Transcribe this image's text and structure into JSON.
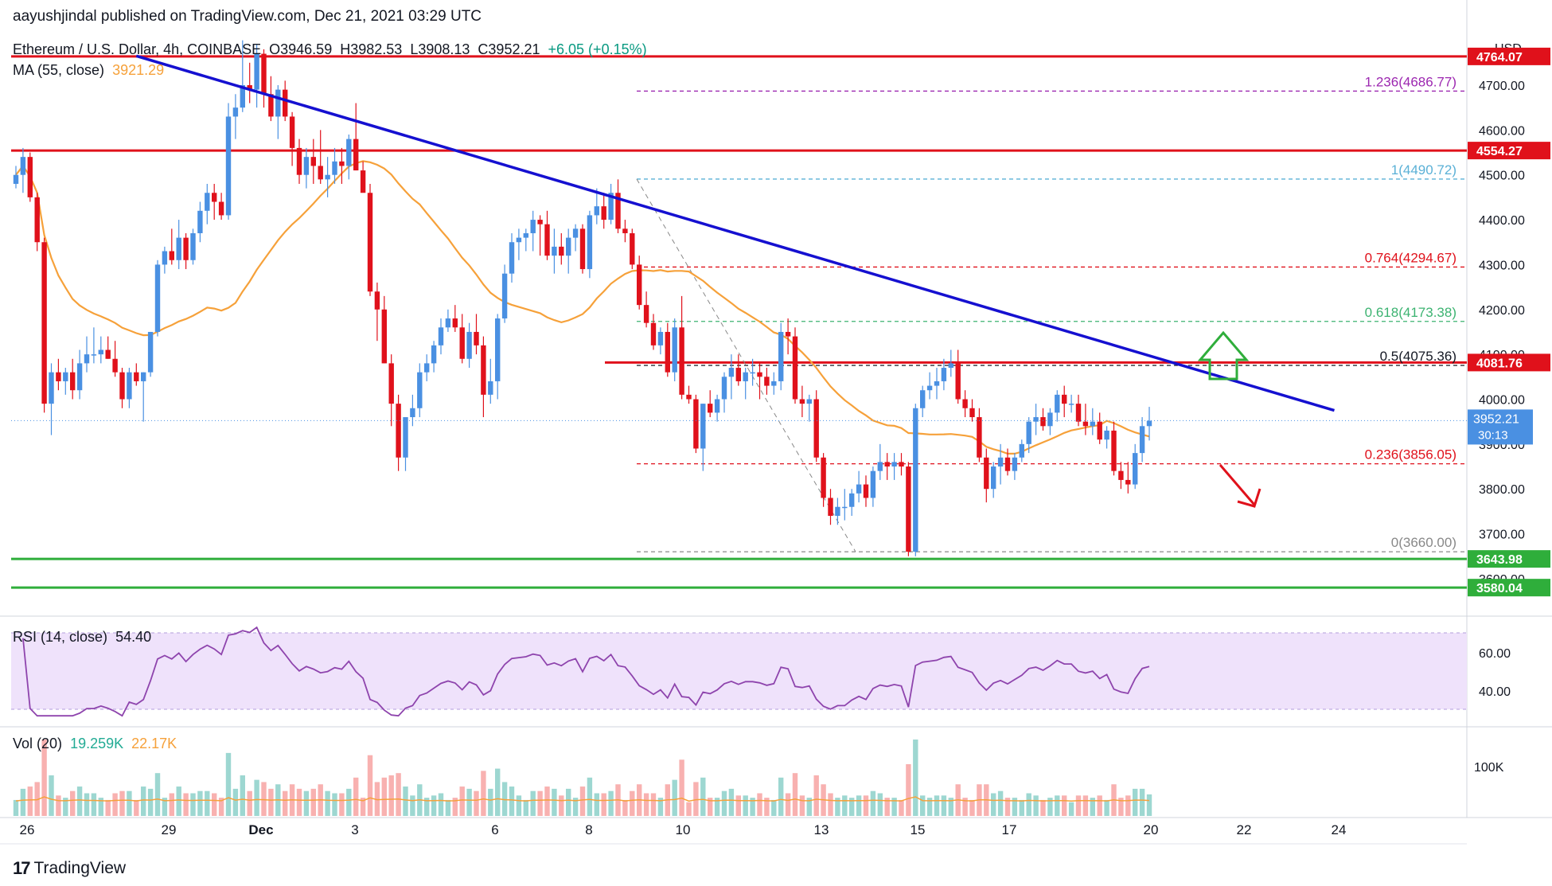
{
  "publisher_line": "aayushjindal published on TradingView.com, Dec 21, 2021 03:29 UTC",
  "symbol": {
    "name": "Ethereum / U.S. Dollar, 4h, COINBASE",
    "open": "O3946.59",
    "high": "H3982.53",
    "low": "L3908.13",
    "close": "C3952.21",
    "change": "+6.05 (+0.15%)"
  },
  "ma": {
    "label": "MA (55, close)",
    "value": "3921.29"
  },
  "rsi": {
    "label": "RSI (14, close)",
    "value": "54.40"
  },
  "vol": {
    "label": "Vol (20)",
    "value1": "19.259K",
    "value2": "22.17K"
  },
  "brand": "TradingView",
  "colors": {
    "up": "#4a90e2",
    "down": "#e0111b",
    "trend": "#1510d0",
    "ma": "#f6a13a",
    "support": "#2fae3b",
    "resistance": "#e0111b",
    "rsi": "#8e44ad",
    "rsi_band": "#efe2fb"
  },
  "chart_data": {
    "type": "candlestick",
    "currency": "USD",
    "y_ticks": [
      3600,
      3700,
      3800,
      3900,
      4000,
      4100,
      4200,
      4300,
      4400,
      4500,
      4600,
      4700
    ],
    "x_ticks": [
      "26",
      "29",
      "Dec",
      "3",
      "6",
      "8",
      "10",
      "13",
      "15",
      "17",
      "20",
      "22",
      "24"
    ],
    "horizontal_levels": [
      {
        "value": 4764.07,
        "label": "4764.07",
        "color": "#e0111b"
      },
      {
        "value": 4554.27,
        "label": "4554.27",
        "color": "#e0111b"
      },
      {
        "value": 4081.76,
        "label": "4081.76",
        "color": "#e0111b"
      },
      {
        "value": 3643.98,
        "label": "3643.98",
        "color": "#2fae3b"
      },
      {
        "value": 3580.04,
        "label": "3580.04",
        "color": "#2fae3b"
      }
    ],
    "fib_levels": [
      {
        "ratio": "1.236",
        "value": 4686.77,
        "label": "1.236(4686.77)",
        "color": "#9c27b0"
      },
      {
        "ratio": "1",
        "value": 4490.72,
        "label": "1(4490.72)",
        "color": "#5ab0d6"
      },
      {
        "ratio": "0.764",
        "value": 4294.67,
        "label": "0.764(4294.67)",
        "color": "#e0111b"
      },
      {
        "ratio": "0.618",
        "value": 4173.38,
        "label": "0.618(4173.38)",
        "color": "#3cb371"
      },
      {
        "ratio": "0.5",
        "value": 4075.36,
        "label": "0.5(4075.36)",
        "color": "#131722"
      },
      {
        "ratio": "0.236",
        "value": 3856.05,
        "label": "0.236(3856.05)",
        "color": "#e0111b"
      },
      {
        "ratio": "0",
        "value": 3660.0,
        "label": "0(3660.00)",
        "color": "#888888"
      }
    ],
    "last_price": {
      "value": 3952.21,
      "label": "3952.21",
      "countdown": "30:13"
    },
    "trendline": {
      "from": {
        "bar": 17,
        "price": 4765
      },
      "to": {
        "bar": 185,
        "price": 3975
      }
    },
    "rsi_ticks": [
      "60.00",
      "40.00"
    ],
    "vol_tick": "100K",
    "candles": [
      [
        4480,
        4520,
        4470,
        4500
      ],
      [
        4500,
        4560,
        4460,
        4540
      ],
      [
        4540,
        4550,
        4440,
        4450
      ],
      [
        4450,
        4460,
        4330,
        4350
      ],
      [
        4350,
        4360,
        3970,
        3990
      ],
      [
        3990,
        4080,
        3920,
        4060
      ],
      [
        4060,
        4090,
        4020,
        4040
      ],
      [
        4040,
        4070,
        4010,
        4060
      ],
      [
        4060,
        4090,
        4000,
        4020
      ],
      [
        4020,
        4110,
        4000,
        4080
      ],
      [
        4080,
        4140,
        4060,
        4100
      ],
      [
        4100,
        4160,
        4080,
        4100
      ],
      [
        4100,
        4140,
        4080,
        4110
      ],
      [
        4110,
        4140,
        4090,
        4090
      ],
      [
        4090,
        4130,
        4050,
        4060
      ],
      [
        4060,
        4070,
        3980,
        4000
      ],
      [
        4000,
        4070,
        3980,
        4060
      ],
      [
        4060,
        4080,
        4030,
        4040
      ],
      [
        4040,
        4060,
        3950,
        4060
      ],
      [
        4060,
        4150,
        4050,
        4150
      ],
      [
        4150,
        4310,
        4140,
        4300
      ],
      [
        4300,
        4340,
        4280,
        4330
      ],
      [
        4330,
        4380,
        4300,
        4310
      ],
      [
        4310,
        4400,
        4290,
        4360
      ],
      [
        4360,
        4370,
        4290,
        4310
      ],
      [
        4310,
        4380,
        4300,
        4370
      ],
      [
        4370,
        4440,
        4350,
        4420
      ],
      [
        4420,
        4480,
        4390,
        4460
      ],
      [
        4460,
        4480,
        4400,
        4440
      ],
      [
        4440,
        4460,
        4400,
        4410
      ],
      [
        4410,
        4660,
        4400,
        4630
      ],
      [
        4630,
        4680,
        4580,
        4650
      ],
      [
        4650,
        4800,
        4640,
        4700
      ],
      [
        4700,
        4750,
        4660,
        4690
      ],
      [
        4690,
        4790,
        4650,
        4770
      ],
      [
        4770,
        4780,
        4650,
        4680
      ],
      [
        4680,
        4720,
        4620,
        4630
      ],
      [
        4630,
        4700,
        4580,
        4690
      ],
      [
        4690,
        4710,
        4620,
        4630
      ],
      [
        4630,
        4640,
        4520,
        4560
      ],
      [
        4560,
        4580,
        4480,
        4500
      ],
      [
        4500,
        4560,
        4470,
        4540
      ],
      [
        4540,
        4580,
        4480,
        4520
      ],
      [
        4520,
        4600,
        4480,
        4490
      ],
      [
        4490,
        4540,
        4450,
        4500
      ],
      [
        4500,
        4560,
        4480,
        4530
      ],
      [
        4530,
        4560,
        4480,
        4520
      ],
      [
        4520,
        4590,
        4490,
        4580
      ],
      [
        4580,
        4660,
        4510,
        4510
      ],
      [
        4510,
        4530,
        4470,
        4460
      ],
      [
        4460,
        4480,
        4230,
        4240
      ],
      [
        4240,
        4260,
        4130,
        4200
      ],
      [
        4200,
        4230,
        4080,
        4080
      ],
      [
        4080,
        4100,
        3940,
        3990
      ],
      [
        3990,
        4010,
        3840,
        3870
      ],
      [
        3870,
        3950,
        3840,
        3960
      ],
      [
        3960,
        4010,
        3940,
        3980
      ],
      [
        3980,
        4080,
        3960,
        4060
      ],
      [
        4060,
        4100,
        4040,
        4080
      ],
      [
        4080,
        4130,
        4060,
        4120
      ],
      [
        4120,
        4180,
        4100,
        4160
      ],
      [
        4160,
        4200,
        4150,
        4180
      ],
      [
        4180,
        4210,
        4150,
        4160
      ],
      [
        4160,
        4190,
        4080,
        4090
      ],
      [
        4090,
        4170,
        4070,
        4150
      ],
      [
        4150,
        4190,
        4100,
        4120
      ],
      [
        4120,
        4140,
        3960,
        4010
      ],
      [
        4010,
        4090,
        3990,
        4040
      ],
      [
        4040,
        4190,
        4000,
        4180
      ],
      [
        4180,
        4300,
        4170,
        4280
      ],
      [
        4280,
        4370,
        4260,
        4350
      ],
      [
        4350,
        4380,
        4310,
        4360
      ],
      [
        4360,
        4380,
        4330,
        4370
      ],
      [
        4370,
        4420,
        4330,
        4400
      ],
      [
        4400,
        4410,
        4320,
        4390
      ],
      [
        4390,
        4420,
        4310,
        4320
      ],
      [
        4320,
        4380,
        4280,
        4340
      ],
      [
        4340,
        4370,
        4300,
        4320
      ],
      [
        4320,
        4380,
        4280,
        4360
      ],
      [
        4360,
        4390,
        4330,
        4380
      ],
      [
        4380,
        4390,
        4280,
        4290
      ],
      [
        4290,
        4420,
        4270,
        4410
      ],
      [
        4410,
        4470,
        4390,
        4430
      ],
      [
        4430,
        4460,
        4380,
        4400
      ],
      [
        4400,
        4480,
        4390,
        4460
      ],
      [
        4460,
        4490,
        4370,
        4380
      ],
      [
        4380,
        4400,
        4350,
        4370
      ],
      [
        4370,
        4380,
        4290,
        4300
      ],
      [
        4300,
        4320,
        4200,
        4210
      ],
      [
        4210,
        4240,
        4160,
        4170
      ],
      [
        4170,
        4190,
        4110,
        4120
      ],
      [
        4120,
        4160,
        4100,
        4150
      ],
      [
        4150,
        4170,
        4050,
        4060
      ],
      [
        4060,
        4180,
        4040,
        4160
      ],
      [
        4160,
        4230,
        4000,
        4010
      ],
      [
        4010,
        4030,
        3990,
        4000
      ],
      [
        4000,
        4010,
        3880,
        3890
      ],
      [
        3890,
        3990,
        3840,
        3990
      ],
      [
        3990,
        4020,
        3960,
        3970
      ],
      [
        3970,
        4010,
        3950,
        4000
      ],
      [
        4000,
        4060,
        3970,
        4050
      ],
      [
        4050,
        4100,
        4000,
        4070
      ],
      [
        4070,
        4100,
        4030,
        4040
      ],
      [
        4040,
        4070,
        4000,
        4060
      ],
      [
        4060,
        4090,
        4030,
        4060
      ],
      [
        4060,
        4080,
        4000,
        4050
      ],
      [
        4050,
        4070,
        4010,
        4030
      ],
      [
        4030,
        4060,
        4010,
        4040
      ],
      [
        4040,
        4170,
        4020,
        4150
      ],
      [
        4150,
        4180,
        4100,
        4140
      ],
      [
        4140,
        4160,
        3990,
        4000
      ],
      [
        4000,
        4030,
        3960,
        3990
      ],
      [
        3990,
        4010,
        3950,
        4000
      ],
      [
        4000,
        4020,
        3860,
        3870
      ],
      [
        3870,
        3880,
        3760,
        3780
      ],
      [
        3780,
        3800,
        3720,
        3740
      ],
      [
        3740,
        3780,
        3720,
        3760
      ],
      [
        3760,
        3800,
        3730,
        3760
      ],
      [
        3760,
        3800,
        3740,
        3790
      ],
      [
        3790,
        3840,
        3770,
        3810
      ],
      [
        3810,
        3830,
        3760,
        3780
      ],
      [
        3780,
        3850,
        3760,
        3840
      ],
      [
        3840,
        3900,
        3820,
        3860
      ],
      [
        3860,
        3880,
        3820,
        3850
      ],
      [
        3850,
        3880,
        3820,
        3860
      ],
      [
        3860,
        3880,
        3830,
        3850
      ],
      [
        3850,
        3860,
        3650,
        3660
      ],
      [
        3660,
        3990,
        3650,
        3980
      ],
      [
        3980,
        4030,
        3960,
        4020
      ],
      [
        4020,
        4060,
        4000,
        4030
      ],
      [
        4030,
        4070,
        4000,
        4040
      ],
      [
        4040,
        4090,
        4020,
        4070
      ],
      [
        4070,
        4110,
        4050,
        4080
      ],
      [
        4080,
        4110,
        3990,
        4000
      ],
      [
        4000,
        4020,
        3960,
        3980
      ],
      [
        3980,
        4000,
        3950,
        3960
      ],
      [
        3960,
        3980,
        3860,
        3870
      ],
      [
        3870,
        3890,
        3770,
        3800
      ],
      [
        3800,
        3860,
        3780,
        3850
      ],
      [
        3850,
        3900,
        3810,
        3870
      ],
      [
        3870,
        3890,
        3830,
        3840
      ],
      [
        3840,
        3880,
        3820,
        3870
      ],
      [
        3870,
        3910,
        3860,
        3900
      ],
      [
        3900,
        3960,
        3880,
        3950
      ],
      [
        3950,
        3990,
        3920,
        3960
      ],
      [
        3960,
        3980,
        3930,
        3940
      ],
      [
        3940,
        3980,
        3920,
        3970
      ],
      [
        3970,
        4020,
        3950,
        4010
      ],
      [
        4010,
        4030,
        3960,
        3990
      ],
      [
        3990,
        4010,
        3970,
        3990
      ],
      [
        3990,
        4010,
        3940,
        3950
      ],
      [
        3950,
        3990,
        3920,
        3940
      ],
      [
        3940,
        3980,
        3920,
        3950
      ],
      [
        3950,
        3970,
        3900,
        3910
      ],
      [
        3910,
        3940,
        3890,
        3930
      ],
      [
        3930,
        3950,
        3830,
        3840
      ],
      [
        3840,
        3860,
        3800,
        3820
      ],
      [
        3820,
        3860,
        3790,
        3810
      ],
      [
        3810,
        3900,
        3800,
        3880
      ],
      [
        3880,
        3960,
        3860,
        3940
      ],
      [
        3940,
        3983,
        3908,
        3952
      ]
    ]
  }
}
